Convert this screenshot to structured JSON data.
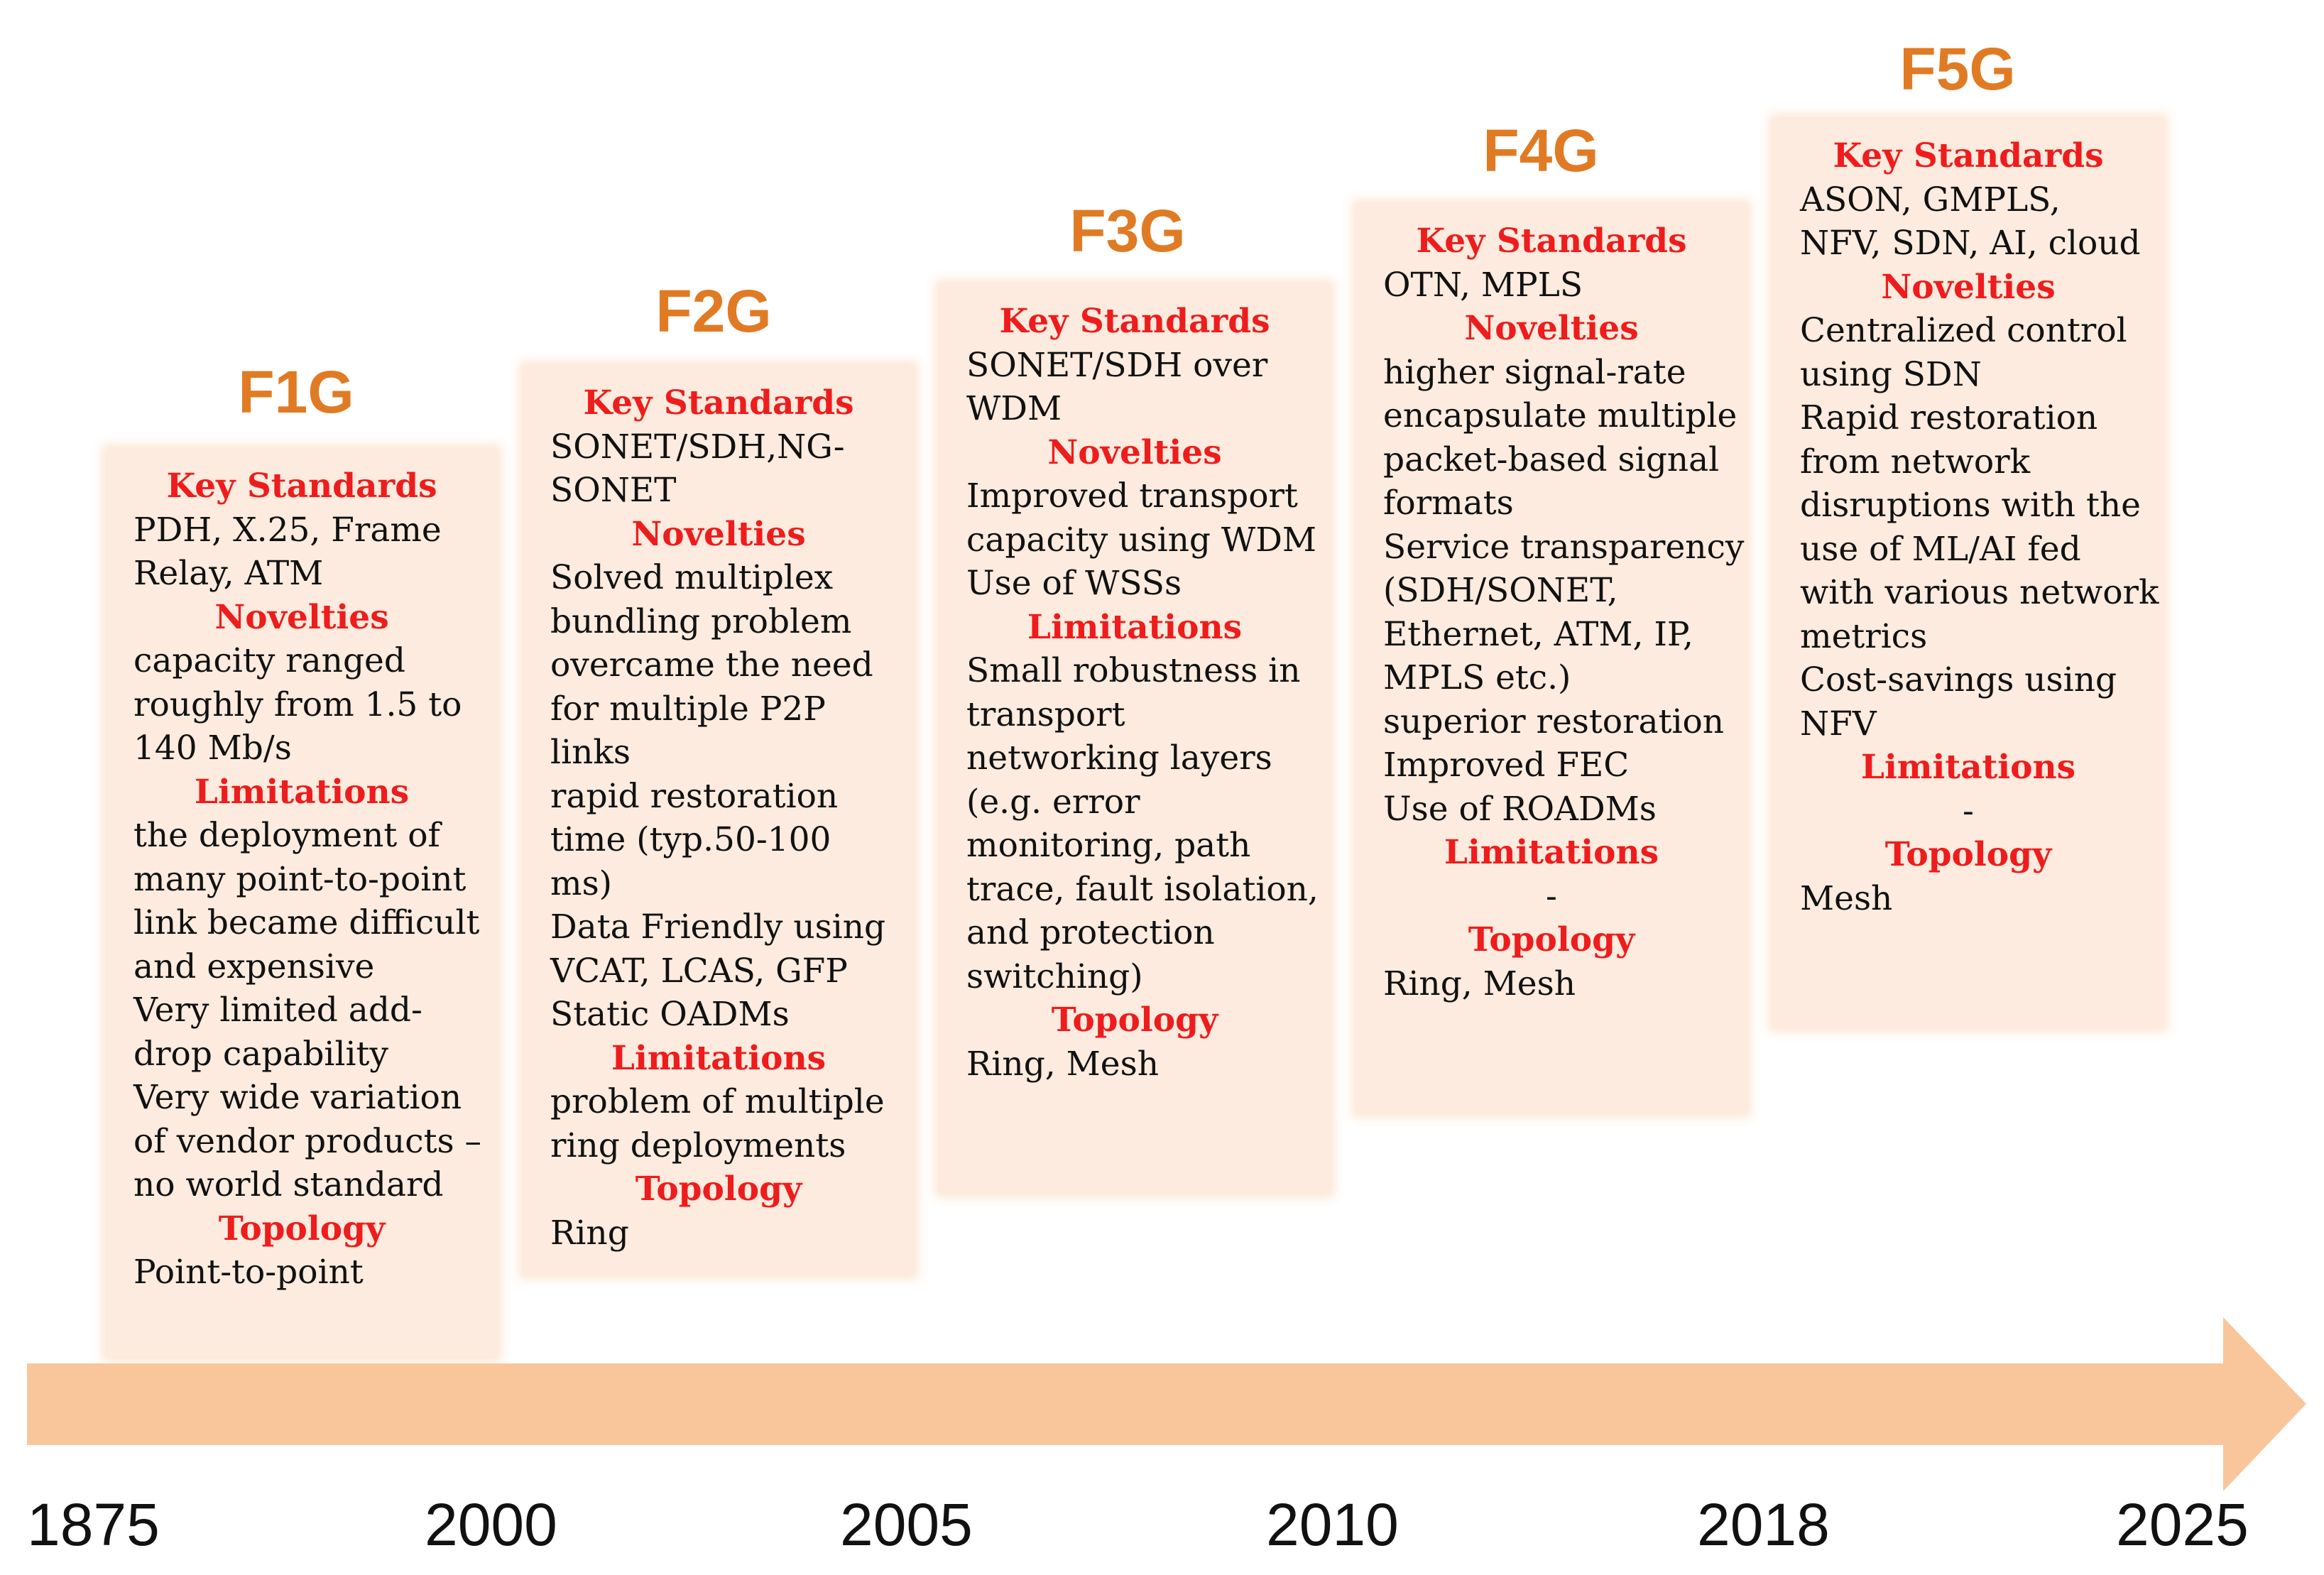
{
  "generations": [
    {
      "title": "F1G",
      "key_standards_heading": "Key Standards",
      "key_standards": [
        "PDH, X.25, Frame",
        "Relay, ATM"
      ],
      "novelties_heading": "Novelties",
      "novelties": [
        "capacity ranged",
        "roughly from 1.5 to",
        "140 Mb/s"
      ],
      "limitations_heading": "Limitations",
      "limitations": [
        "the deployment of",
        "many point-to-point",
        "link became difficult",
        "and expensive",
        "Very limited add-",
        "drop capability",
        "Very wide variation",
        "of vendor products –",
        "no world standard"
      ],
      "topology_heading": "Topology",
      "topology": [
        "Point-to-point"
      ]
    },
    {
      "title": "F2G",
      "key_standards_heading": "Key Standards",
      "key_standards": [
        "SONET/SDH,NG-",
        "SONET"
      ],
      "novelties_heading": "Novelties",
      "novelties": [
        "Solved multiplex",
        "bundling problem",
        "overcame the need",
        "for multiple P2P",
        "links",
        "rapid restoration",
        "time (typ.50-100",
        "ms)",
        "Data Friendly using",
        "VCAT, LCAS, GFP",
        "Static OADMs"
      ],
      "limitations_heading": "Limitations",
      "limitations": [
        "problem of multiple",
        "ring deployments"
      ],
      "topology_heading": "Topology",
      "topology": [
        "Ring"
      ]
    },
    {
      "title": "F3G",
      "key_standards_heading": "Key Standards",
      "key_standards": [
        "SONET/SDH over",
        "WDM"
      ],
      "novelties_heading": "Novelties",
      "novelties": [
        "Improved transport",
        "capacity using WDM",
        "Use of WSSs"
      ],
      "limitations_heading": "Limitations",
      "limitations": [
        "Small robustness in",
        "transport",
        "networking layers",
        "(e.g. error",
        "monitoring, path",
        "trace, fault isolation,",
        "and protection",
        "switching)"
      ],
      "topology_heading": "Topology",
      "topology": [
        "Ring, Mesh"
      ]
    },
    {
      "title": "F4G",
      "key_standards_heading": "Key Standards",
      "key_standards": [
        "OTN, MPLS"
      ],
      "novelties_heading": "Novelties",
      "novelties": [
        "higher signal-rate",
        "encapsulate multiple",
        "packet-based signal",
        "formats",
        "Service transparency",
        "(SDH/SONET,",
        "Ethernet, ATM, IP,",
        "MPLS etc.)",
        "superior restoration",
        "Improved FEC",
        "Use of ROADMs"
      ],
      "limitations_heading": "Limitations",
      "limitations": [
        "-"
      ],
      "topology_heading": "Topology",
      "topology": [
        "Ring, Mesh"
      ]
    },
    {
      "title": "F5G",
      "key_standards_heading": "Key Standards",
      "key_standards": [
        " ASON, GMPLS,",
        "NFV, SDN, AI, cloud"
      ],
      "novelties_heading": "Novelties",
      "novelties": [
        "Centralized control",
        "using SDN",
        "Rapid restoration",
        "from network",
        "disruptions with the",
        "use of ML/AI fed",
        "with various network",
        "metrics",
        "Cost-savings using",
        "NFV"
      ],
      "limitations_heading": "Limitations",
      "limitations": [
        "-"
      ],
      "topology_heading": "Topology",
      "topology": [
        "Mesh"
      ]
    }
  ],
  "timeline": {
    "years": [
      "1875",
      "2000",
      "2005",
      "2010",
      "2018",
      "2025"
    ],
    "arrow_color": "#f9c69b"
  },
  "colors": {
    "title": "#e07b24",
    "heading": "#ee1c1c",
    "box_fill": "#fcebde"
  }
}
